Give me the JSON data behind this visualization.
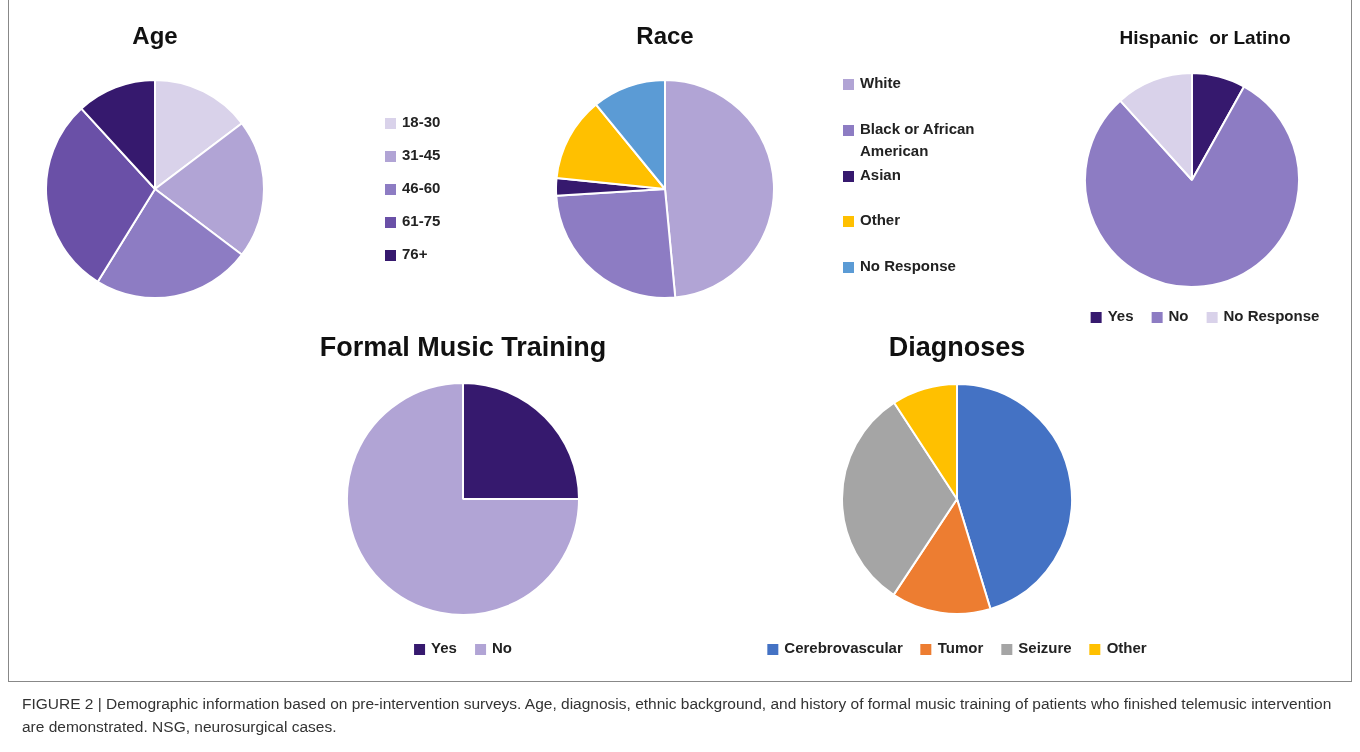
{
  "chart_data": [
    {
      "type": "pie",
      "title": "Age",
      "categories": [
        "18-30",
        "31-45",
        "46-60",
        "61-75",
        "76+"
      ],
      "values": [
        14.7,
        20.6,
        23.5,
        29.4,
        11.8
      ],
      "colors": [
        "#d9d2ea",
        "#b1a4d5",
        "#8d7cc3",
        "#6a50a7",
        "#36196e"
      ],
      "legend": "right"
    },
    {
      "type": "pie",
      "title": "Race",
      "categories": [
        "White",
        "Black or African American",
        "Asian",
        "Other",
        "No Response"
      ],
      "values": [
        48.5,
        25.5,
        2.6,
        12.5,
        10.9
      ],
      "colors": [
        "#b1a4d5",
        "#8d7cc3",
        "#36196e",
        "#ffc000",
        "#5b9bd5"
      ],
      "legend": "right"
    },
    {
      "type": "pie",
      "title": "Hispanic  or Latino",
      "categories": [
        "Yes",
        "No",
        "No Response"
      ],
      "values": [
        8.1,
        80.2,
        11.7
      ],
      "colors": [
        "#36196e",
        "#8d7cc3",
        "#d9d2ea"
      ],
      "legend": "bottom"
    },
    {
      "type": "pie",
      "title": "Formal Music Training",
      "categories": [
        "Yes",
        "No"
      ],
      "values": [
        25,
        75
      ],
      "colors": [
        "#36196e",
        "#b1a4d5"
      ],
      "legend": "bottom"
    },
    {
      "type": "pie",
      "title": "Diagnoses",
      "categories": [
        "Cerebrovascular",
        "Tumor",
        "Seizure",
        "Other"
      ],
      "values": [
        45.3,
        14,
        31.5,
        9.2
      ],
      "colors": [
        "#4472c4",
        "#ed7d31",
        "#a5a5a5",
        "#ffc000"
      ],
      "legend": "bottom",
      "annotations": [
        "FIGURE 2 | Demographic information based on pre-intervention surveys. Age, diagnosis, ethnic background, and history of formal music training of patients who finished telemusic intervention are demonstrated. NSG, neurosurgical cases."
      ]
    }
  ]
}
